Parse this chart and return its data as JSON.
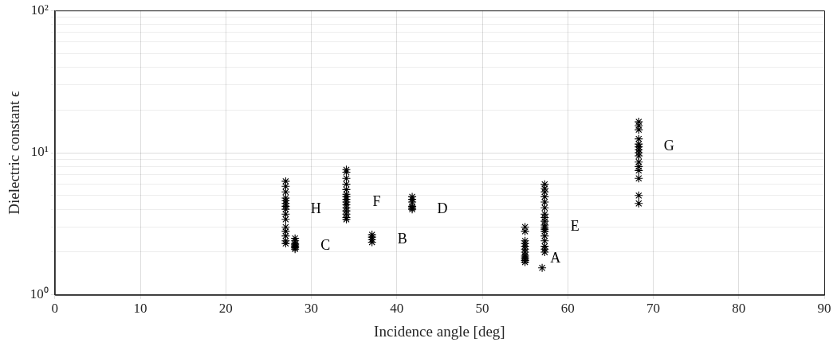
{
  "chart_data": {
    "type": "scatter",
    "xlabel": "Incidence angle [deg]",
    "ylabel": "Dielectric constant ϵ",
    "xlim": [
      0,
      90
    ],
    "xticks": [
      0,
      10,
      20,
      30,
      40,
      50,
      60,
      70,
      80,
      90
    ],
    "ylim": [
      1,
      100
    ],
    "log": "y",
    "yticks": [
      {
        "value": 1,
        "label": "10⁰"
      },
      {
        "value": 2,
        "label": null
      },
      {
        "value": 3,
        "label": null
      },
      {
        "value": 4,
        "label": null
      },
      {
        "value": 5,
        "label": null
      },
      {
        "value": 6,
        "label": null
      },
      {
        "value": 7,
        "label": null
      },
      {
        "value": 8,
        "label": null
      },
      {
        "value": 9,
        "label": null
      },
      {
        "value": 10,
        "label": "10¹"
      },
      {
        "value": 20,
        "label": null
      },
      {
        "value": 30,
        "label": null
      },
      {
        "value": 40,
        "label": null
      },
      {
        "value": 50,
        "label": null
      },
      {
        "value": 60,
        "label": null
      },
      {
        "value": 70,
        "label": null
      },
      {
        "value": 80,
        "label": null
      },
      {
        "value": 90,
        "label": null
      },
      {
        "value": 100,
        "label": "10²"
      }
    ],
    "grid": true,
    "legend": false,
    "marker": "cross",
    "series": [
      {
        "color": "#000000",
        "x": [
          27,
          27,
          27,
          27,
          27,
          27,
          27,
          27,
          27,
          27,
          27,
          27,
          27,
          27,
          27,
          28.1,
          28.1,
          28.1,
          28.1,
          28.1,
          28.1,
          28.1,
          34.1,
          34.1,
          34.1,
          34.1,
          34.1,
          34.1,
          34.1,
          34.1,
          34.1,
          34.1,
          34.1,
          34.1,
          34.1,
          34.1,
          34.1,
          37.1,
          37.1,
          37.1,
          37.1,
          41.8,
          41.8,
          41.8,
          41.8,
          41.8,
          41.8,
          55,
          55,
          55,
          55,
          55,
          55,
          55,
          55,
          55,
          55,
          55,
          55,
          57.3,
          57.3,
          57.3,
          57.3,
          57.3,
          57.3,
          57.3,
          57.3,
          57.3,
          57.3,
          57.3,
          57.3,
          57.3,
          57.3,
          57.3,
          57.3,
          57.3,
          57.3,
          57,
          68.3,
          68.3,
          68.3,
          68.3,
          68.3,
          68.3,
          68.3,
          68.3,
          68.3,
          68.3,
          68.3,
          68.3,
          68.3,
          68.3,
          68.3
        ],
        "values": [
          6.3,
          5.8,
          5.3,
          4.8,
          4.6,
          4.4,
          4.2,
          4,
          3.7,
          3.4,
          3,
          2.8,
          2.6,
          2.4,
          2.3,
          2.5,
          2.4,
          2.3,
          2.25,
          2.2,
          2.15,
          2.1,
          7.6,
          7.3,
          6.6,
          6,
          5.5,
          5.1,
          4.9,
          4.7,
          4.5,
          4.3,
          4.1,
          3.9,
          3.7,
          3.5,
          3.4,
          2.65,
          2.55,
          2.45,
          2.35,
          4.9,
          4.7,
          4.5,
          4.2,
          4.1,
          4,
          3,
          2.8,
          2.4,
          2.3,
          2.2,
          2.1,
          2,
          1.9,
          1.85,
          1.8,
          1.75,
          1.7,
          6,
          5.6,
          5.3,
          4.9,
          4.5,
          4.1,
          3.7,
          3.5,
          3.3,
          3.1,
          3,
          2.9,
          2.8,
          2.6,
          2.4,
          2.2,
          2.1,
          2,
          1.55,
          16.5,
          15.5,
          14.5,
          12.5,
          11.5,
          11,
          10.5,
          10,
          9.5,
          8.6,
          8,
          7.5,
          6.6,
          5,
          4.4
        ]
      }
    ],
    "annotations": [
      {
        "text": "H",
        "x": 27,
        "y": 4
      },
      {
        "text": "C",
        "x": 28.1,
        "y": 2.2
      },
      {
        "text": "F",
        "x": 34.1,
        "y": 4.5
      },
      {
        "text": "B",
        "x": 37.1,
        "y": 2.45
      },
      {
        "text": "D",
        "x": 41.8,
        "y": 4
      },
      {
        "text": "A",
        "x": 55,
        "y": 1.8
      },
      {
        "text": "E",
        "x": 57.3,
        "y": 3
      },
      {
        "text": "G",
        "x": 68.3,
        "y": 11
      }
    ]
  }
}
